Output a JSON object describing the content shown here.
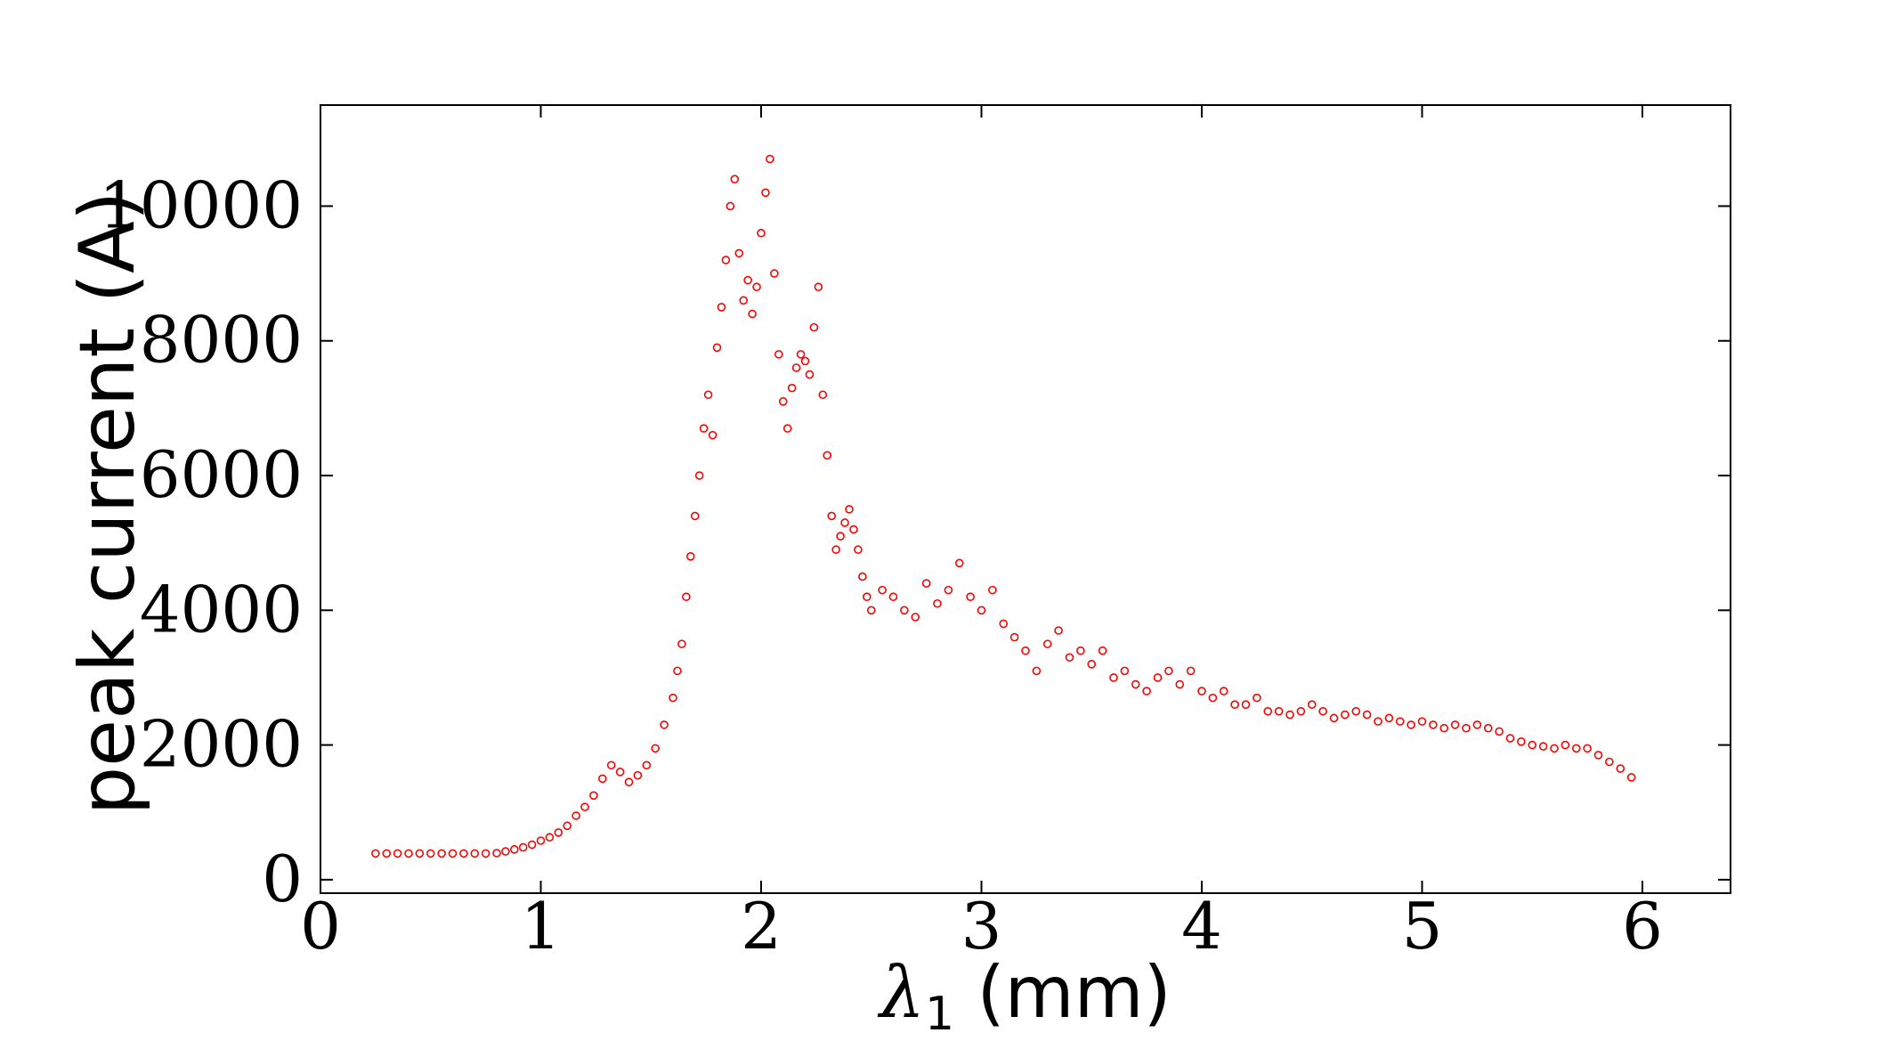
{
  "chart_data": {
    "type": "scatter",
    "xlabel_symbol": "λ",
    "xlabel_subscript": "1",
    "xlabel_unit": " (mm)",
    "ylabel": "peak current (A)",
    "xlim": [
      0,
      6.4
    ],
    "ylim": [
      -200,
      11500
    ],
    "xticks": [
      0,
      1,
      2,
      3,
      4,
      5,
      6
    ],
    "xtick_labels": [
      "0",
      "1",
      "2",
      "3",
      "4",
      "5",
      "6"
    ],
    "yticks": [
      0,
      2000,
      4000,
      6000,
      8000,
      10000
    ],
    "ytick_labels": [
      "0",
      "2000",
      "4000",
      "6000",
      "8000",
      "10000"
    ],
    "grid": false,
    "marker": "open-circle",
    "color": "#ff0000",
    "series": [
      {
        "points": [
          [
            0.25,
            390
          ],
          [
            0.3,
            390
          ],
          [
            0.35,
            390
          ],
          [
            0.4,
            390
          ],
          [
            0.45,
            390
          ],
          [
            0.5,
            390
          ],
          [
            0.55,
            390
          ],
          [
            0.6,
            390
          ],
          [
            0.65,
            390
          ],
          [
            0.7,
            390
          ],
          [
            0.75,
            390
          ],
          [
            0.8,
            395
          ],
          [
            0.84,
            420
          ],
          [
            0.88,
            450
          ],
          [
            0.92,
            480
          ],
          [
            0.96,
            520
          ],
          [
            1.0,
            580
          ],
          [
            1.04,
            630
          ],
          [
            1.08,
            700
          ],
          [
            1.12,
            800
          ],
          [
            1.16,
            950
          ],
          [
            1.2,
            1080
          ],
          [
            1.24,
            1250
          ],
          [
            1.28,
            1500
          ],
          [
            1.32,
            1700
          ],
          [
            1.36,
            1600
          ],
          [
            1.4,
            1450
          ],
          [
            1.44,
            1550
          ],
          [
            1.48,
            1700
          ],
          [
            1.52,
            1950
          ],
          [
            1.56,
            2300
          ],
          [
            1.6,
            2700
          ],
          [
            1.62,
            3100
          ],
          [
            1.64,
            3500
          ],
          [
            1.66,
            4200
          ],
          [
            1.68,
            4800
          ],
          [
            1.7,
            5400
          ],
          [
            1.72,
            6000
          ],
          [
            1.74,
            6700
          ],
          [
            1.76,
            7200
          ],
          [
            1.78,
            6600
          ],
          [
            1.8,
            7900
          ],
          [
            1.82,
            8500
          ],
          [
            1.84,
            9200
          ],
          [
            1.86,
            10000
          ],
          [
            1.88,
            10400
          ],
          [
            1.9,
            9300
          ],
          [
            1.92,
            8600
          ],
          [
            1.94,
            8900
          ],
          [
            1.96,
            8400
          ],
          [
            1.98,
            8800
          ],
          [
            2.0,
            9600
          ],
          [
            2.02,
            10200
          ],
          [
            2.04,
            10700
          ],
          [
            2.06,
            9000
          ],
          [
            2.08,
            7800
          ],
          [
            2.1,
            7100
          ],
          [
            2.12,
            6700
          ],
          [
            2.14,
            7300
          ],
          [
            2.16,
            7600
          ],
          [
            2.18,
            7800
          ],
          [
            2.2,
            7700
          ],
          [
            2.22,
            7500
          ],
          [
            2.24,
            8200
          ],
          [
            2.26,
            8800
          ],
          [
            2.28,
            7200
          ],
          [
            2.3,
            6300
          ],
          [
            2.32,
            5400
          ],
          [
            2.34,
            4900
          ],
          [
            2.36,
            5100
          ],
          [
            2.38,
            5300
          ],
          [
            2.4,
            5500
          ],
          [
            2.42,
            5200
          ],
          [
            2.44,
            4900
          ],
          [
            2.46,
            4500
          ],
          [
            2.48,
            4200
          ],
          [
            2.5,
            4000
          ],
          [
            2.55,
            4300
          ],
          [
            2.6,
            4200
          ],
          [
            2.65,
            4000
          ],
          [
            2.7,
            3900
          ],
          [
            2.75,
            4400
          ],
          [
            2.8,
            4100
          ],
          [
            2.85,
            4300
          ],
          [
            2.9,
            4700
          ],
          [
            2.95,
            4200
          ],
          [
            3.0,
            4000
          ],
          [
            3.05,
            4300
          ],
          [
            3.1,
            3800
          ],
          [
            3.15,
            3600
          ],
          [
            3.2,
            3400
          ],
          [
            3.25,
            3100
          ],
          [
            3.3,
            3500
          ],
          [
            3.35,
            3700
          ],
          [
            3.4,
            3300
          ],
          [
            3.45,
            3400
          ],
          [
            3.5,
            3200
          ],
          [
            3.55,
            3400
          ],
          [
            3.6,
            3000
          ],
          [
            3.65,
            3100
          ],
          [
            3.7,
            2900
          ],
          [
            3.75,
            2800
          ],
          [
            3.8,
            3000
          ],
          [
            3.85,
            3100
          ],
          [
            3.9,
            2900
          ],
          [
            3.95,
            3100
          ],
          [
            4.0,
            2800
          ],
          [
            4.05,
            2700
          ],
          [
            4.1,
            2800
          ],
          [
            4.15,
            2600
          ],
          [
            4.2,
            2600
          ],
          [
            4.25,
            2700
          ],
          [
            4.3,
            2500
          ],
          [
            4.35,
            2500
          ],
          [
            4.4,
            2450
          ],
          [
            4.45,
            2500
          ],
          [
            4.5,
            2600
          ],
          [
            4.55,
            2500
          ],
          [
            4.6,
            2400
          ],
          [
            4.65,
            2450
          ],
          [
            4.7,
            2500
          ],
          [
            4.75,
            2450
          ],
          [
            4.8,
            2350
          ],
          [
            4.85,
            2400
          ],
          [
            4.9,
            2350
          ],
          [
            4.95,
            2300
          ],
          [
            5.0,
            2350
          ],
          [
            5.05,
            2300
          ],
          [
            5.1,
            2250
          ],
          [
            5.15,
            2300
          ],
          [
            5.2,
            2250
          ],
          [
            5.25,
            2300
          ],
          [
            5.3,
            2250
          ],
          [
            5.35,
            2200
          ],
          [
            5.4,
            2100
          ],
          [
            5.45,
            2050
          ],
          [
            5.5,
            2000
          ],
          [
            5.55,
            1980
          ],
          [
            5.6,
            1950
          ],
          [
            5.65,
            2000
          ],
          [
            5.7,
            1950
          ],
          [
            5.75,
            1950
          ],
          [
            5.8,
            1850
          ],
          [
            5.85,
            1750
          ],
          [
            5.9,
            1650
          ],
          [
            5.95,
            1520
          ]
        ]
      }
    ]
  }
}
